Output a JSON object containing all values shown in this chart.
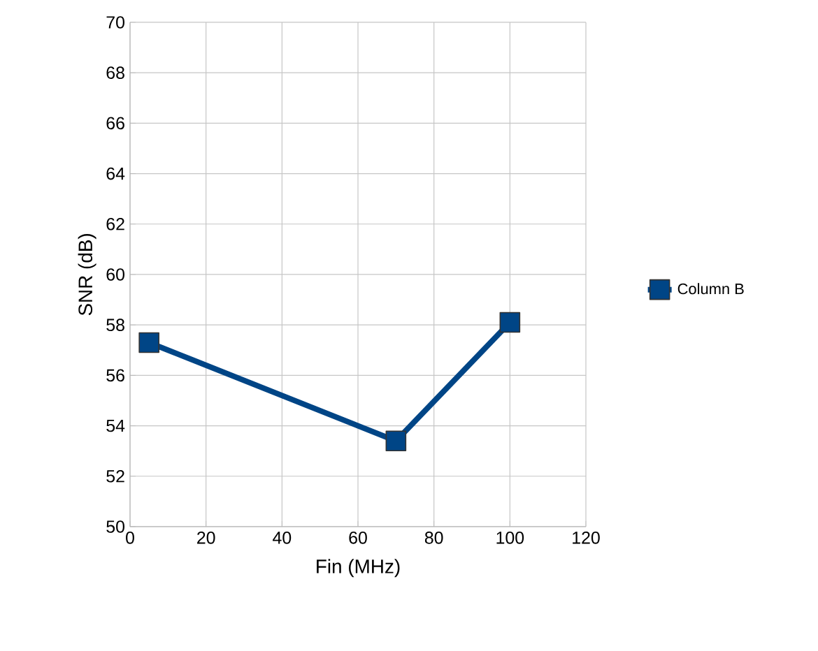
{
  "chart_data": {
    "type": "line",
    "xlabel": "Fin (MHz)",
    "ylabel": "SNR (dB)",
    "x": [
      5,
      70,
      100
    ],
    "series": [
      {
        "name": "Column B",
        "color": "#004586",
        "values": [
          57.3,
          53.4,
          58.1
        ]
      }
    ],
    "xlim": [
      0,
      120
    ],
    "xticks": [
      0,
      20,
      40,
      60,
      80,
      100,
      120
    ],
    "ylim": [
      50,
      70
    ],
    "yticks": [
      50,
      52,
      54,
      56,
      58,
      60,
      62,
      64,
      66,
      68,
      70
    ],
    "grid": true,
    "legend": "right",
    "marker": "square",
    "line_style": "solid"
  }
}
